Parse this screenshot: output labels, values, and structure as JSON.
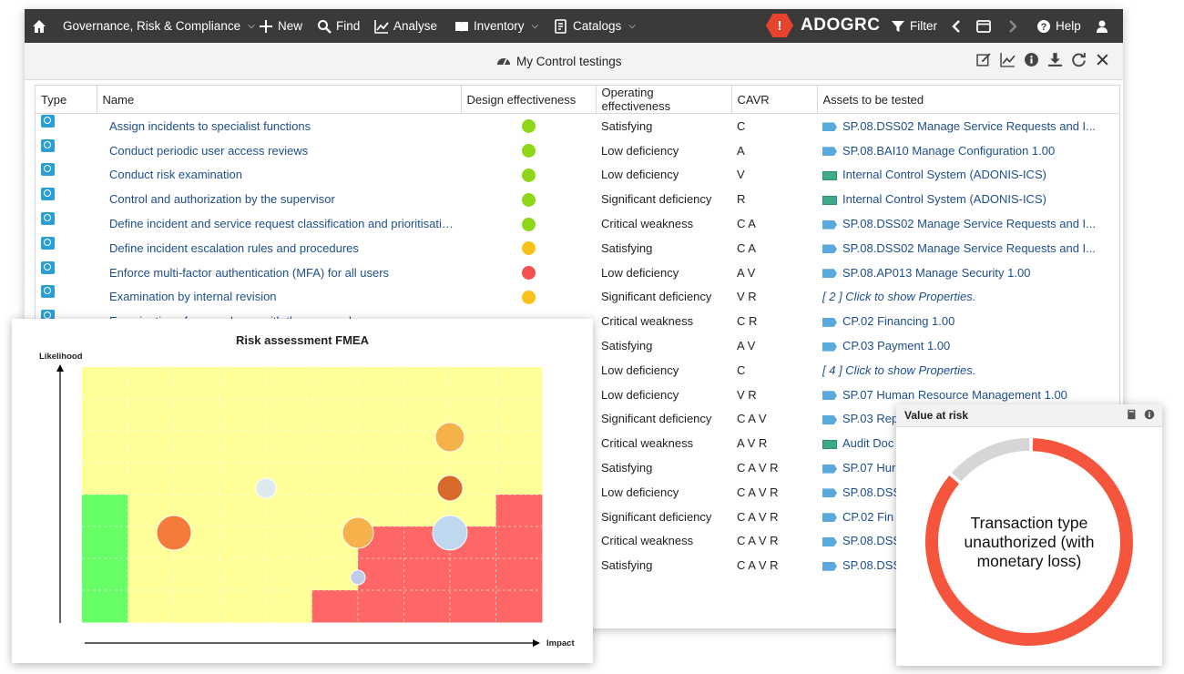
{
  "topbar": {
    "menu": [
      {
        "label": "Governance, Risk & Compliance",
        "dropdown": true
      },
      {
        "label": "New",
        "dropdown": false
      },
      {
        "label": "Find",
        "dropdown": false
      },
      {
        "label": "Analyse",
        "dropdown": false
      },
      {
        "label": "Inventory",
        "dropdown": true
      },
      {
        "label": "Catalogs",
        "dropdown": true
      }
    ],
    "brand": "ADOGRC",
    "filter_label": "Filter",
    "help_label": "Help"
  },
  "panel": {
    "title": "My Control testings"
  },
  "table": {
    "headers": [
      "Type",
      "Name",
      "Design effectiveness",
      "Operating effectiveness",
      "CAVR",
      "Assets to be tested"
    ],
    "rows": [
      {
        "name": "Assign incidents to specialist functions",
        "design": "green",
        "operating": "Satisfying",
        "cavr": "C",
        "asset": "SP.08.DSS02 Manage Service Requests and I...",
        "asset_icon": "tag",
        "asset_italic": false
      },
      {
        "name": "Conduct periodic user access reviews",
        "design": "green",
        "operating": "Low deficiency",
        "cavr": "A",
        "asset": "SP.08.BAI10 Manage Configuration 1.00",
        "asset_icon": "tag",
        "asset_italic": false
      },
      {
        "name": "Conduct risk examination",
        "design": "green",
        "operating": "Low deficiency",
        "cavr": "V",
        "asset": "Internal Control System (ADONIS-ICS)",
        "asset_icon": "sys",
        "asset_italic": false
      },
      {
        "name": "Control and authorization by the supervisor",
        "design": "green",
        "operating": "Significant deficiency",
        "cavr": "R",
        "asset": "Internal Control System (ADONIS-ICS)",
        "asset_icon": "sys",
        "asset_italic": false
      },
      {
        "name": "Define incident and service request classification and prioritisation...",
        "design": "green",
        "operating": "Critical weakness",
        "cavr": "C A",
        "asset": "SP.08.DSS02 Manage Service Requests and I...",
        "asset_icon": "tag",
        "asset_italic": false
      },
      {
        "name": "Define incident escalation rules and procedures",
        "design": "yellow",
        "operating": "Satisfying",
        "cavr": "C A",
        "asset": "SP.08.DSS02 Manage Service Requests and I...",
        "asset_icon": "tag",
        "asset_italic": false
      },
      {
        "name": "Enforce multi-factor authentication (MFA) for all users",
        "design": "red",
        "operating": "Low deficiency",
        "cavr": "A V",
        "asset": "SP.08.AP013 Manage Security 1.00",
        "asset_icon": "tag",
        "asset_italic": false
      },
      {
        "name": "Examination by internal revision",
        "design": "yellow",
        "operating": "Significant deficiency",
        "cavr": "V R",
        "asset": "[ 2 ] Click to show Properties.",
        "asset_icon": "",
        "asset_italic": true
      },
      {
        "name": "Examination of an employee with the same role",
        "design": "",
        "operating": "Critical weakness",
        "cavr": "C R",
        "asset": "CP.02 Financing 1.00",
        "asset_icon": "tag",
        "asset_italic": false
      },
      {
        "name": "",
        "design": "",
        "operating": "Satisfying",
        "cavr": "A V",
        "asset": "CP.03 Payment 1.00",
        "asset_icon": "tag",
        "asset_italic": false
      },
      {
        "name": "",
        "design": "",
        "operating": "Low deficiency",
        "cavr": "C",
        "asset": "[ 4 ] Click to show Properties.",
        "asset_icon": "",
        "asset_italic": true
      },
      {
        "name": "",
        "design": "",
        "operating": "Low deficiency",
        "cavr": "V R",
        "asset": "SP.07 Human Resource Management 1.00",
        "asset_icon": "tag",
        "asset_italic": false
      },
      {
        "name": "",
        "design": "",
        "operating": "Significant deficiency",
        "cavr": "C A V",
        "asset": "SP.03 Rep",
        "asset_icon": "tag",
        "asset_italic": false
      },
      {
        "name": "",
        "design": "",
        "operating": "Critical weakness",
        "cavr": "A V R",
        "asset": "Audit Doc",
        "asset_icon": "sys",
        "asset_italic": false
      },
      {
        "name": "",
        "design": "",
        "operating": "Satisfying",
        "cavr": "C A V R",
        "asset": "SP.07 Hur",
        "asset_icon": "tag",
        "asset_italic": false
      },
      {
        "name": "",
        "design": "",
        "operating": "Low deficiency",
        "cavr": "C A V R",
        "asset": "SP.08.DSS",
        "asset_icon": "tag",
        "asset_italic": false
      },
      {
        "name": "",
        "design": "",
        "operating": "Significant deficiency",
        "cavr": "C A V R",
        "asset": "CP.02 Fin",
        "asset_icon": "tag",
        "asset_italic": false
      },
      {
        "name": "",
        "design": "",
        "operating": "Critical weakness",
        "cavr": "C A V R",
        "asset": "SP.08.DSS",
        "asset_icon": "tag",
        "asset_italic": false
      },
      {
        "name": "",
        "design": "",
        "operating": "Satisfying",
        "cavr": "C A V R",
        "asset": "SP.08.DSS",
        "asset_icon": "tag",
        "asset_italic": false
      }
    ],
    "dot_colors": {
      "green": "#8ed619",
      "yellow": "#f9c21a",
      "red": "#f2514f"
    }
  },
  "chart_data": [
    {
      "type": "scatter",
      "title": "Risk assessment FMEA",
      "xlabel": "Impact",
      "ylabel": "Likelihood",
      "grid_cols": 10,
      "grid_rows": 8,
      "zones": [
        [
          1,
          1,
          1,
          1,
          1,
          1,
          1,
          1,
          1,
          1
        ],
        [
          1,
          1,
          1,
          1,
          1,
          1,
          1,
          1,
          1,
          1
        ],
        [
          1,
          1,
          1,
          1,
          1,
          1,
          1,
          1,
          2,
          2
        ],
        [
          1,
          1,
          1,
          1,
          1,
          1,
          1,
          2,
          2,
          2
        ],
        [
          0,
          1,
          1,
          1,
          1,
          1,
          1,
          2,
          2,
          3
        ],
        [
          0,
          1,
          1,
          1,
          1,
          1,
          3,
          3,
          3,
          3
        ],
        [
          0,
          1,
          1,
          1,
          2,
          2,
          3,
          3,
          3,
          3
        ],
        [
          0,
          1,
          1,
          2,
          2,
          3,
          3,
          3,
          3,
          3
        ]
      ],
      "zone_colors": [
        "#66fd66",
        "#ffff99",
        "#ffff99",
        "#ff6666"
      ],
      "points": [
        {
          "x": 8,
          "y": 5.8,
          "size": 16,
          "color": "#f5b24a"
        },
        {
          "x": 8,
          "y": 4.2,
          "size": 14,
          "color": "#d9692a"
        },
        {
          "x": 4,
          "y": 4.2,
          "size": 11,
          "color": "#dce9ee"
        },
        {
          "x": 2,
          "y": 2.8,
          "size": 19,
          "color": "#f57b3b"
        },
        {
          "x": 6,
          "y": 2.8,
          "size": 17,
          "color": "#f5b24a"
        },
        {
          "x": 8,
          "y": 2.8,
          "size": 19,
          "color": "#bfd8f0"
        },
        {
          "x": 6,
          "y": 1.4,
          "size": 8,
          "color": "#bfcdea"
        }
      ],
      "xlim": [
        0,
        10
      ],
      "ylim": [
        0,
        8
      ]
    },
    {
      "type": "pie",
      "title": "Value at risk",
      "center_label": "Transaction type unauthorized (with monetary loss)",
      "slices": [
        {
          "label": "Transaction type unauthorized (with monetary loss)",
          "value": 86,
          "color": "#f5553c"
        },
        {
          "label": "",
          "value": 14,
          "color": "#d6d6d6"
        }
      ]
    }
  ]
}
